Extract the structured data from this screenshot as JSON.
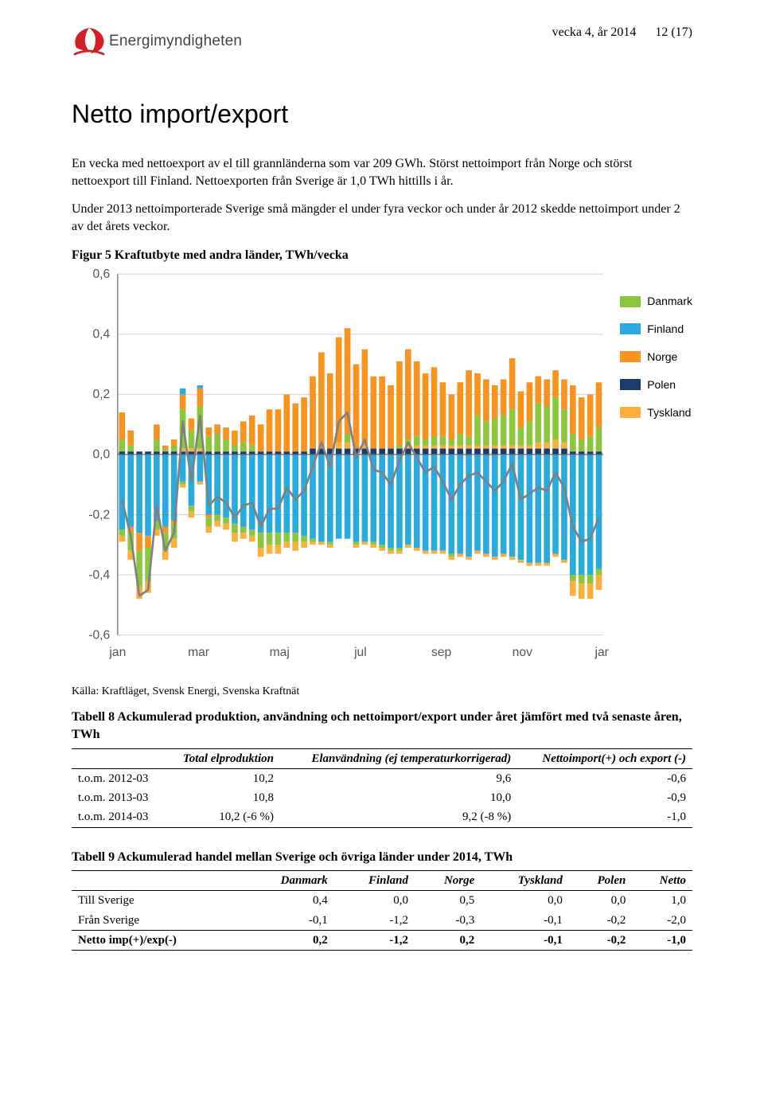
{
  "header": {
    "logo_text": "Energimyndigheten",
    "meta_week": "vecka 4, år 2014",
    "meta_page": "12 (17)"
  },
  "title": "Netto import/export",
  "paragraphs": {
    "p1": "En vecka med nettoexport av el till grannländerna som var 209 GWh. Störst nettoimport från Norge och störst nettoexport till Finland. Nettoexporten från Sverige är 1,0 TWh hittills i år.",
    "p2": "Under 2013 nettoimporterade Sverige små mängder el under fyra veckor och under år 2012 skedde nettoimport under 2 av det årets veckor."
  },
  "figure": {
    "caption": "Figur 5 Kraftutbyte med andra länder, TWh/vecka",
    "source": "Källa: Kraftläget, Svensk Energi, Svenska Kraftnät",
    "legend": [
      {
        "label": "Danmark",
        "color": "#8cc63f"
      },
      {
        "label": "Finland",
        "color": "#29abe2"
      },
      {
        "label": "Norge",
        "color": "#f7931e"
      },
      {
        "label": "Polen",
        "color": "#1b3b6f"
      },
      {
        "label": "Tyskland",
        "color": "#fbb03b"
      }
    ],
    "chart": {
      "type": "stacked-bar+line",
      "ylim": [
        -0.6,
        0.6
      ],
      "ytick_step": 0.2,
      "yticks": [
        "0,6",
        "0,4",
        "0,2",
        "0,0",
        "-0,2",
        "-0,4",
        "-0,6"
      ],
      "xticks": [
        "jan",
        "mar",
        "maj",
        "jul",
        "sep",
        "nov",
        "jan"
      ],
      "grid_color": "#d9d9d9",
      "line_color": "#808080",
      "axis_color": "#666666",
      "background": "#ffffff",
      "label_fontsize": 13,
      "weeks": 56,
      "series_colors": {
        "danmark": "#8cc63f",
        "finland": "#29abe2",
        "norge": "#f7931e",
        "polen": "#1b3b6f",
        "tyskland": "#fbb03b"
      },
      "data": [
        {
          "dk": 0.04,
          "fi": 0.0,
          "no": 0.09,
          "pl": 0.01,
          "ty": 0.0,
          "dkn": -0.02,
          "fin": -0.25,
          "non": -0.0,
          "pln": 0,
          "tyn": -0.02,
          "net": -0.15
        },
        {
          "dk": 0.02,
          "fi": 0.0,
          "no": 0.05,
          "pl": 0.01,
          "ty": 0.0,
          "dkn": -0.06,
          "fin": -0.24,
          "non": -0.02,
          "pln": 0,
          "tyn": -0.03,
          "net": -0.27
        },
        {
          "dk": 0.0,
          "fi": 0.0,
          "no": 0.0,
          "pl": 0.01,
          "ty": 0.0,
          "dkn": -0.12,
          "fin": -0.26,
          "non": -0.06,
          "pln": 0,
          "tyn": -0.04,
          "net": -0.47
        },
        {
          "dk": 0.0,
          "fi": 0.0,
          "no": 0.0,
          "pl": 0.01,
          "ty": 0.0,
          "dkn": -0.11,
          "fin": -0.27,
          "non": -0.04,
          "pln": 0,
          "tyn": -0.04,
          "net": -0.45
        },
        {
          "dk": 0.04,
          "fi": 0.0,
          "no": 0.05,
          "pl": 0.01,
          "ty": 0.0,
          "dkn": -0.03,
          "fin": -0.22,
          "non": -0.0,
          "pln": 0,
          "tyn": -0.02,
          "net": -0.17
        },
        {
          "dk": 0.01,
          "fi": 0.0,
          "no": 0.01,
          "pl": 0.01,
          "ty": 0.0,
          "dkn": -0.06,
          "fin": -0.24,
          "non": -0.02,
          "pln": 0,
          "tyn": -0.03,
          "net": -0.32
        },
        {
          "dk": 0.02,
          "fi": 0.0,
          "no": 0.02,
          "pl": 0.01,
          "ty": 0.0,
          "dkn": -0.05,
          "fin": -0.22,
          "non": -0.01,
          "pln": 0,
          "tyn": -0.03,
          "net": -0.26
        },
        {
          "dk": 0.13,
          "fi": 0.02,
          "no": 0.05,
          "pl": 0.01,
          "ty": 0.01,
          "dkn": -0.01,
          "fin": -0.09,
          "non": -0.0,
          "pln": 0,
          "tyn": -0.01,
          "net": 0.11
        },
        {
          "dk": 0.06,
          "fi": 0.0,
          "no": 0.04,
          "pl": 0.01,
          "ty": 0.01,
          "dkn": -0.02,
          "fin": -0.17,
          "non": -0.0,
          "pln": 0,
          "tyn": -0.02,
          "net": -0.09
        },
        {
          "dk": 0.14,
          "fi": 0.01,
          "no": 0.06,
          "pl": 0.01,
          "ty": 0.01,
          "dkn": -0.0,
          "fin": -0.09,
          "non": -0.0,
          "pln": 0,
          "tyn": -0.01,
          "net": 0.13
        },
        {
          "dk": 0.05,
          "fi": 0.0,
          "no": 0.03,
          "pl": 0.01,
          "ty": 0.0,
          "dkn": -0.03,
          "fin": -0.2,
          "non": -0.01,
          "pln": 0,
          "tyn": -0.02,
          "net": -0.17
        },
        {
          "dk": 0.06,
          "fi": 0.0,
          "no": 0.03,
          "pl": 0.01,
          "ty": 0.0,
          "dkn": -0.02,
          "fin": -0.2,
          "non": -0.0,
          "pln": 0,
          "tyn": -0.02,
          "net": -0.14
        },
        {
          "dk": 0.04,
          "fi": 0.0,
          "no": 0.04,
          "pl": 0.01,
          "ty": 0.0,
          "dkn": -0.02,
          "fin": -0.21,
          "non": -0.0,
          "pln": 0,
          "tyn": -0.02,
          "net": -0.16
        },
        {
          "dk": 0.02,
          "fi": 0.0,
          "no": 0.05,
          "pl": 0.01,
          "ty": 0.0,
          "dkn": -0.03,
          "fin": -0.23,
          "non": -0.0,
          "pln": 0,
          "tyn": -0.03,
          "net": -0.21
        },
        {
          "dk": 0.03,
          "fi": 0.0,
          "no": 0.07,
          "pl": 0.01,
          "ty": 0.0,
          "dkn": -0.02,
          "fin": -0.24,
          "non": -0.0,
          "pln": 0,
          "tyn": -0.02,
          "net": -0.17
        },
        {
          "dk": 0.02,
          "fi": 0.0,
          "no": 0.1,
          "pl": 0.01,
          "ty": 0.0,
          "dkn": -0.02,
          "fin": -0.25,
          "non": -0.0,
          "pln": 0,
          "tyn": -0.02,
          "net": -0.16
        },
        {
          "dk": 0.0,
          "fi": 0.0,
          "no": 0.09,
          "pl": 0.01,
          "ty": 0.0,
          "dkn": -0.05,
          "fin": -0.26,
          "non": -0.0,
          "pln": 0,
          "tyn": -0.03,
          "net": -0.24
        },
        {
          "dk": 0.0,
          "fi": 0.0,
          "no": 0.14,
          "pl": 0.01,
          "ty": 0.0,
          "dkn": -0.04,
          "fin": -0.26,
          "non": -0.0,
          "pln": 0,
          "tyn": -0.03,
          "net": -0.18
        },
        {
          "dk": 0.0,
          "fi": 0.0,
          "no": 0.14,
          "pl": 0.01,
          "ty": 0.0,
          "dkn": -0.04,
          "fin": -0.26,
          "non": -0.0,
          "pln": 0,
          "tyn": -0.03,
          "net": -0.18
        },
        {
          "dk": 0.0,
          "fi": 0.0,
          "no": 0.19,
          "pl": 0.01,
          "ty": 0.0,
          "dkn": -0.03,
          "fin": -0.26,
          "non": -0.0,
          "pln": 0,
          "tyn": -0.02,
          "net": -0.11
        },
        {
          "dk": 0.0,
          "fi": 0.0,
          "no": 0.16,
          "pl": 0.01,
          "ty": 0.0,
          "dkn": -0.03,
          "fin": -0.26,
          "non": -0.0,
          "pln": 0,
          "tyn": -0.03,
          "net": -0.15
        },
        {
          "dk": 0.0,
          "fi": 0.0,
          "no": 0.18,
          "pl": 0.01,
          "ty": 0.0,
          "dkn": -0.02,
          "fin": -0.27,
          "non": -0.0,
          "pln": 0,
          "tyn": -0.02,
          "net": -0.12
        },
        {
          "dk": 0.0,
          "fi": 0.0,
          "no": 0.24,
          "pl": 0.02,
          "ty": 0.0,
          "dkn": -0.01,
          "fin": -0.28,
          "non": -0.0,
          "pln": 0,
          "tyn": -0.01,
          "net": -0.04
        },
        {
          "dk": 0.0,
          "fi": 0.0,
          "no": 0.32,
          "pl": 0.02,
          "ty": 0.0,
          "dkn": -0.0,
          "fin": -0.29,
          "non": -0.0,
          "pln": 0,
          "tyn": -0.01,
          "net": 0.04
        },
        {
          "dk": 0.0,
          "fi": 0.0,
          "no": 0.25,
          "pl": 0.02,
          "ty": 0.0,
          "dkn": -0.01,
          "fin": -0.29,
          "non": -0.0,
          "pln": 0,
          "tyn": -0.01,
          "net": -0.04
        },
        {
          "dk": 0.0,
          "fi": 0.0,
          "no": 0.35,
          "pl": 0.02,
          "ty": 0.02,
          "dkn": -0.0,
          "fin": -0.28,
          "non": -0.0,
          "pln": 0,
          "tyn": -0.0,
          "net": 0.11
        },
        {
          "dk": 0.03,
          "fi": 0.0,
          "no": 0.35,
          "pl": 0.02,
          "ty": 0.02,
          "dkn": -0.0,
          "fin": -0.28,
          "non": -0.0,
          "pln": 0,
          "tyn": -0.0,
          "net": 0.14
        },
        {
          "dk": 0.0,
          "fi": 0.0,
          "no": 0.28,
          "pl": 0.02,
          "ty": 0.0,
          "dkn": -0.01,
          "fin": -0.29,
          "non": -0.0,
          "pln": 0,
          "tyn": -0.01,
          "net": -0.01
        },
        {
          "dk": 0.0,
          "fi": 0.0,
          "no": 0.32,
          "pl": 0.02,
          "ty": 0.01,
          "dkn": -0.0,
          "fin": -0.29,
          "non": -0.0,
          "pln": 0,
          "tyn": -0.01,
          "net": 0.05
        },
        {
          "dk": 0.0,
          "fi": 0.0,
          "no": 0.24,
          "pl": 0.02,
          "ty": 0.0,
          "dkn": -0.01,
          "fin": -0.29,
          "non": -0.0,
          "pln": 0,
          "tyn": -0.01,
          "net": -0.05
        },
        {
          "dk": 0.0,
          "fi": 0.0,
          "no": 0.24,
          "pl": 0.02,
          "ty": 0.0,
          "dkn": -0.01,
          "fin": -0.3,
          "non": -0.0,
          "pln": 0,
          "tyn": -0.01,
          "net": -0.06
        },
        {
          "dk": 0.0,
          "fi": 0.0,
          "no": 0.21,
          "pl": 0.02,
          "ty": 0.0,
          "dkn": -0.01,
          "fin": -0.31,
          "non": -0.0,
          "pln": 0,
          "tyn": -0.01,
          "net": -0.1
        },
        {
          "dk": 0.01,
          "fi": 0.0,
          "no": 0.28,
          "pl": 0.02,
          "ty": 0.0,
          "dkn": -0.01,
          "fin": -0.31,
          "non": -0.0,
          "pln": 0,
          "tyn": -0.01,
          "net": -0.02
        },
        {
          "dk": 0.02,
          "fi": 0.0,
          "no": 0.3,
          "pl": 0.02,
          "ty": 0.01,
          "dkn": -0.0,
          "fin": -0.3,
          "non": -0.0,
          "pln": 0,
          "tyn": -0.01,
          "net": 0.04
        },
        {
          "dk": 0.03,
          "fi": 0.0,
          "no": 0.25,
          "pl": 0.02,
          "ty": 0.01,
          "dkn": -0.0,
          "fin": -0.31,
          "non": -0.0,
          "pln": 0,
          "tyn": -0.01,
          "net": -0.01
        },
        {
          "dk": 0.02,
          "fi": 0.0,
          "no": 0.22,
          "pl": 0.02,
          "ty": 0.01,
          "dkn": -0.0,
          "fin": -0.32,
          "non": -0.0,
          "pln": 0,
          "tyn": -0.01,
          "net": -0.06
        },
        {
          "dk": 0.03,
          "fi": 0.0,
          "no": 0.23,
          "pl": 0.02,
          "ty": 0.01,
          "dkn": -0.0,
          "fin": -0.32,
          "non": -0.0,
          "pln": 0,
          "tyn": -0.01,
          "net": -0.04
        },
        {
          "dk": 0.03,
          "fi": 0.0,
          "no": 0.18,
          "pl": 0.02,
          "ty": 0.01,
          "dkn": -0.0,
          "fin": -0.32,
          "non": -0.0,
          "pln": 0,
          "tyn": -0.01,
          "net": -0.09
        },
        {
          "dk": 0.02,
          "fi": 0.0,
          "no": 0.15,
          "pl": 0.02,
          "ty": 0.01,
          "dkn": -0.01,
          "fin": -0.33,
          "non": -0.0,
          "pln": 0,
          "tyn": -0.01,
          "net": -0.15
        },
        {
          "dk": 0.04,
          "fi": 0.0,
          "no": 0.17,
          "pl": 0.02,
          "ty": 0.01,
          "dkn": -0.0,
          "fin": -0.33,
          "non": -0.0,
          "pln": 0,
          "tyn": -0.01,
          "net": -0.1
        },
        {
          "dk": 0.03,
          "fi": 0.0,
          "no": 0.22,
          "pl": 0.02,
          "ty": 0.01,
          "dkn": -0.0,
          "fin": -0.34,
          "non": -0.0,
          "pln": 0,
          "tyn": -0.01,
          "net": -0.07
        },
        {
          "dk": 0.1,
          "fi": 0.0,
          "no": 0.14,
          "pl": 0.02,
          "ty": 0.01,
          "dkn": -0.0,
          "fin": -0.32,
          "non": -0.0,
          "pln": 0,
          "tyn": -0.01,
          "net": -0.06
        },
        {
          "dk": 0.08,
          "fi": 0.0,
          "no": 0.14,
          "pl": 0.02,
          "ty": 0.01,
          "dkn": -0.0,
          "fin": -0.33,
          "non": -0.0,
          "pln": 0,
          "tyn": -0.01,
          "net": -0.09
        },
        {
          "dk": 0.09,
          "fi": 0.0,
          "no": 0.11,
          "pl": 0.02,
          "ty": 0.01,
          "dkn": -0.0,
          "fin": -0.34,
          "non": -0.0,
          "pln": 0,
          "tyn": -0.01,
          "net": -0.12
        },
        {
          "dk": 0.1,
          "fi": 0.0,
          "no": 0.12,
          "pl": 0.02,
          "ty": 0.01,
          "dkn": -0.0,
          "fin": -0.33,
          "non": -0.0,
          "pln": 0,
          "tyn": -0.01,
          "net": -0.09
        },
        {
          "dk": 0.12,
          "fi": 0.0,
          "no": 0.17,
          "pl": 0.02,
          "ty": 0.01,
          "dkn": -0.0,
          "fin": -0.34,
          "non": -0.0,
          "pln": 0,
          "tyn": -0.01,
          "net": -0.03
        },
        {
          "dk": 0.06,
          "fi": 0.0,
          "no": 0.12,
          "pl": 0.02,
          "ty": 0.01,
          "dkn": -0.0,
          "fin": -0.35,
          "non": -0.0,
          "pln": 0,
          "tyn": -0.01,
          "net": -0.15
        },
        {
          "dk": 0.08,
          "fi": 0.0,
          "no": 0.13,
          "pl": 0.02,
          "ty": 0.01,
          "dkn": -0.0,
          "fin": -0.36,
          "non": -0.0,
          "pln": 0,
          "tyn": -0.01,
          "net": -0.13
        },
        {
          "dk": 0.13,
          "fi": 0.0,
          "no": 0.09,
          "pl": 0.02,
          "ty": 0.02,
          "dkn": -0.0,
          "fin": -0.36,
          "non": -0.0,
          "pln": 0,
          "tyn": -0.01,
          "net": -0.11
        },
        {
          "dk": 0.12,
          "fi": 0.0,
          "no": 0.09,
          "pl": 0.02,
          "ty": 0.02,
          "dkn": -0.0,
          "fin": -0.36,
          "non": -0.0,
          "pln": 0,
          "tyn": -0.01,
          "net": -0.12
        },
        {
          "dk": 0.14,
          "fi": 0.0,
          "no": 0.09,
          "pl": 0.02,
          "ty": 0.03,
          "dkn": -0.0,
          "fin": -0.33,
          "non": -0.0,
          "pln": 0,
          "tyn": -0.01,
          "net": -0.06
        },
        {
          "dk": 0.11,
          "fi": 0.0,
          "no": 0.1,
          "pl": 0.02,
          "ty": 0.02,
          "dkn": -0.0,
          "fin": -0.35,
          "non": -0.0,
          "pln": 0,
          "tyn": -0.01,
          "net": -0.11
        },
        {
          "dk": 0.06,
          "fi": 0.0,
          "no": 0.16,
          "pl": 0.01,
          "ty": 0.0,
          "dkn": -0.02,
          "fin": -0.4,
          "non": -0.0,
          "pln": 0,
          "tyn": -0.05,
          "net": -0.24
        },
        {
          "dk": 0.04,
          "fi": 0.0,
          "no": 0.14,
          "pl": 0.01,
          "ty": 0.0,
          "dkn": -0.03,
          "fin": -0.4,
          "non": -0.0,
          "pln": 0,
          "tyn": -0.05,
          "net": -0.29
        },
        {
          "dk": 0.05,
          "fi": 0.0,
          "no": 0.14,
          "pl": 0.01,
          "ty": 0.0,
          "dkn": -0.03,
          "fin": -0.4,
          "non": -0.0,
          "pln": 0,
          "tyn": -0.05,
          "net": -0.28
        },
        {
          "dk": 0.08,
          "fi": 0.0,
          "no": 0.15,
          "pl": 0.01,
          "ty": 0.0,
          "dkn": -0.02,
          "fin": -0.38,
          "non": -0.0,
          "pln": 0,
          "tyn": -0.05,
          "net": -0.21
        }
      ]
    }
  },
  "table8": {
    "caption": "Tabell 8 Ackumulerad produktion, användning och nettoimport/export under året jämfört med två senaste åren, TWh",
    "headers": [
      "",
      "Total elproduktion",
      "Elanvändning (ej temperaturkorrigerad)",
      "Nettoimport(+) och export (-)"
    ],
    "rows": [
      [
        "t.o.m. 2012-03",
        "10,2",
        "9,6",
        "-0,6"
      ],
      [
        "t.o.m. 2013-03",
        "10,8",
        "10,0",
        "-0,9"
      ],
      [
        "t.o.m. 2014-03",
        "10,2 (-6 %)",
        "9,2 (-8 %)",
        "-1,0"
      ]
    ]
  },
  "table9": {
    "caption": "Tabell 9 Ackumulerad handel mellan Sverige och övriga länder under 2014, TWh",
    "headers": [
      "",
      "Danmark",
      "Finland",
      "Norge",
      "Tyskland",
      "Polen",
      "Netto"
    ],
    "rows": [
      [
        "Till Sverige",
        "0,4",
        "0,0",
        "0,5",
        "0,0",
        "0,0",
        "1,0"
      ],
      [
        "Från Sverige",
        "-0,1",
        "-1,2",
        "-0,3",
        "-0,1",
        "-0,2",
        "-2,0"
      ],
      [
        "Netto imp(+)/exp(-)",
        "0,2",
        "-1,2",
        "0,2",
        "-0,1",
        "-0,2",
        "-1,0"
      ]
    ]
  }
}
